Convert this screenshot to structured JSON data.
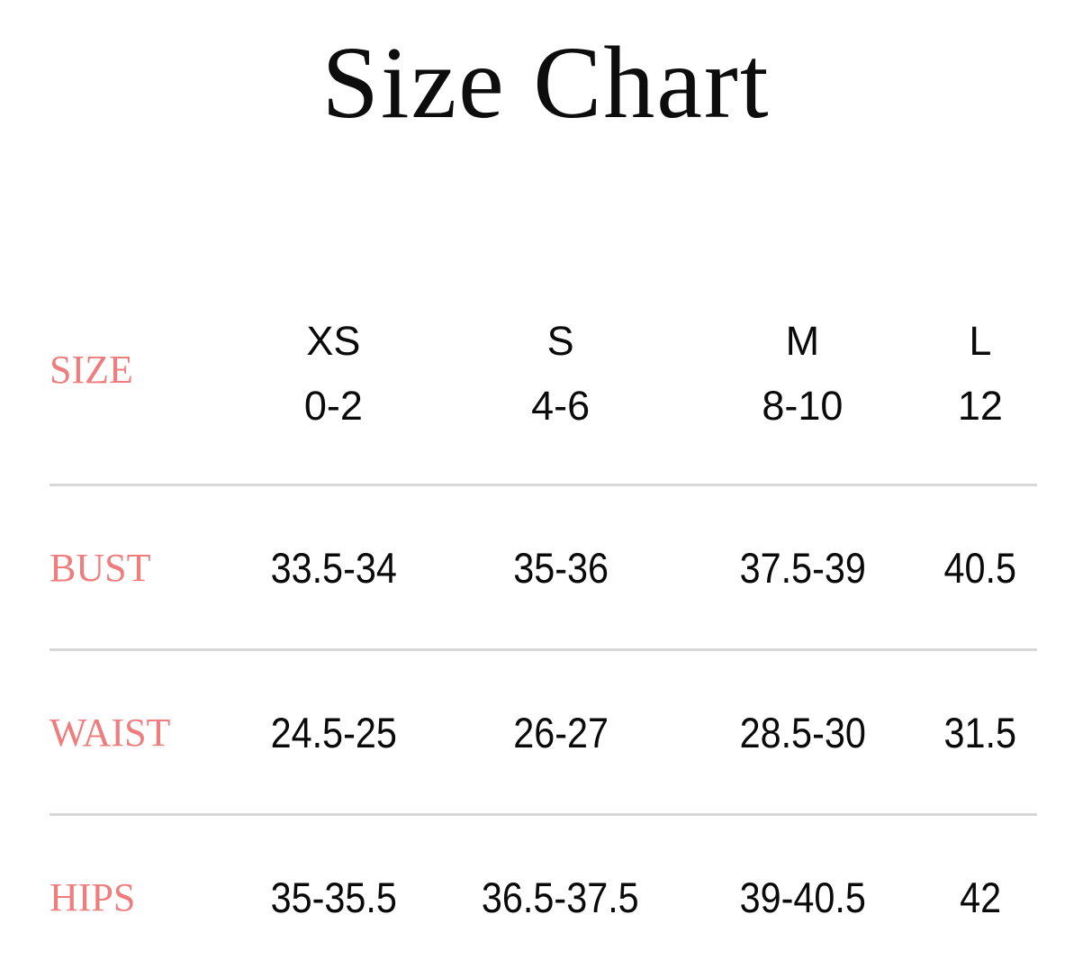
{
  "colors": {
    "accent": "#EF7D7D",
    "divider": "#D8D8D8",
    "ink": "#0A0A0A",
    "background": "#FFFFFF"
  },
  "chart_data": {
    "type": "table",
    "title": "Size Chart",
    "corner_label": "SIZE",
    "columns": [
      {
        "size": "XS",
        "range": "0-2"
      },
      {
        "size": "S",
        "range": "4-6"
      },
      {
        "size": "M",
        "range": "8-10"
      },
      {
        "size": "L",
        "range": "12"
      }
    ],
    "rows": [
      {
        "label": "BUST",
        "values": [
          "33.5-34",
          "35-36",
          "37.5-39",
          "40.5"
        ]
      },
      {
        "label": "WAIST",
        "values": [
          "24.5-25",
          "26-27",
          "28.5-30",
          "31.5"
        ]
      },
      {
        "label": "HIPS",
        "values": [
          "35-35.5",
          "36.5-37.5",
          "39-40.5",
          "42"
        ]
      }
    ]
  }
}
